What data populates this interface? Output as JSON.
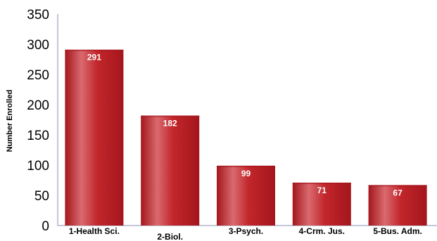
{
  "chart_data": {
    "type": "bar",
    "title": "",
    "xlabel": "",
    "ylabel": "Number Enrolled",
    "categories": [
      "1-Health Sci.",
      "2-Biol.",
      "3-Psych.",
      "4-Crm. Jus.",
      "5-Bus. Adm."
    ],
    "values": [
      291,
      182,
      99,
      71,
      67
    ],
    "data_labels": [
      "291",
      "182",
      "99",
      "71",
      "67"
    ],
    "ylim": [
      0,
      350
    ],
    "yticks": [
      0,
      50,
      100,
      150,
      200,
      250,
      300,
      350
    ],
    "ytick_labels": [
      "0",
      "50",
      "100",
      "150",
      "200",
      "250",
      "300",
      "350"
    ],
    "grid": false,
    "legend": "none",
    "colors": {
      "bar_dark": "#a3161c",
      "bar_mid": "#c2262b",
      "bar_light": "#d96a6f",
      "axis": "#8a8fb0"
    }
  }
}
